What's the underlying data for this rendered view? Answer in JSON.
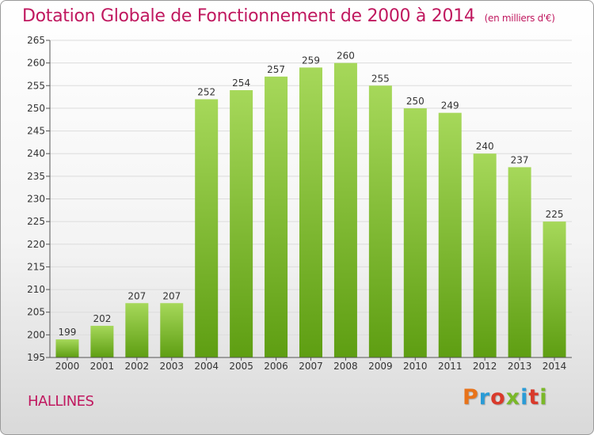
{
  "header": {
    "title": "Dotation Globale de Fonctionnement de 2000 à 2014",
    "units": "(en milliers d'€)"
  },
  "footer": {
    "city": "HALLINES",
    "logo": "Proxiti",
    "logo_colors": [
      "#e8731a",
      "#2a9bd6",
      "#d93a2b",
      "#7ab829",
      "#2a9bd6",
      "#d93a2b",
      "#7ab829"
    ]
  },
  "colors": {
    "title": "#c0185f",
    "bar_top": "#a6d85a",
    "bar_bottom": "#5e9e12",
    "grid": "#dcdcdc"
  },
  "chart_data": {
    "type": "bar",
    "categories": [
      "2000",
      "2001",
      "2002",
      "2003",
      "2004",
      "2005",
      "2006",
      "2007",
      "2008",
      "2009",
      "2010",
      "2011",
      "2012",
      "2013",
      "2014"
    ],
    "values": [
      199,
      202,
      207,
      207,
      252,
      254,
      257,
      259,
      260,
      255,
      250,
      249,
      240,
      237,
      225
    ],
    "ylim": [
      195,
      265
    ],
    "yticks": [
      195,
      200,
      205,
      210,
      215,
      220,
      225,
      230,
      235,
      240,
      245,
      250,
      255,
      260,
      265
    ],
    "grid": true,
    "data_labels": true
  }
}
